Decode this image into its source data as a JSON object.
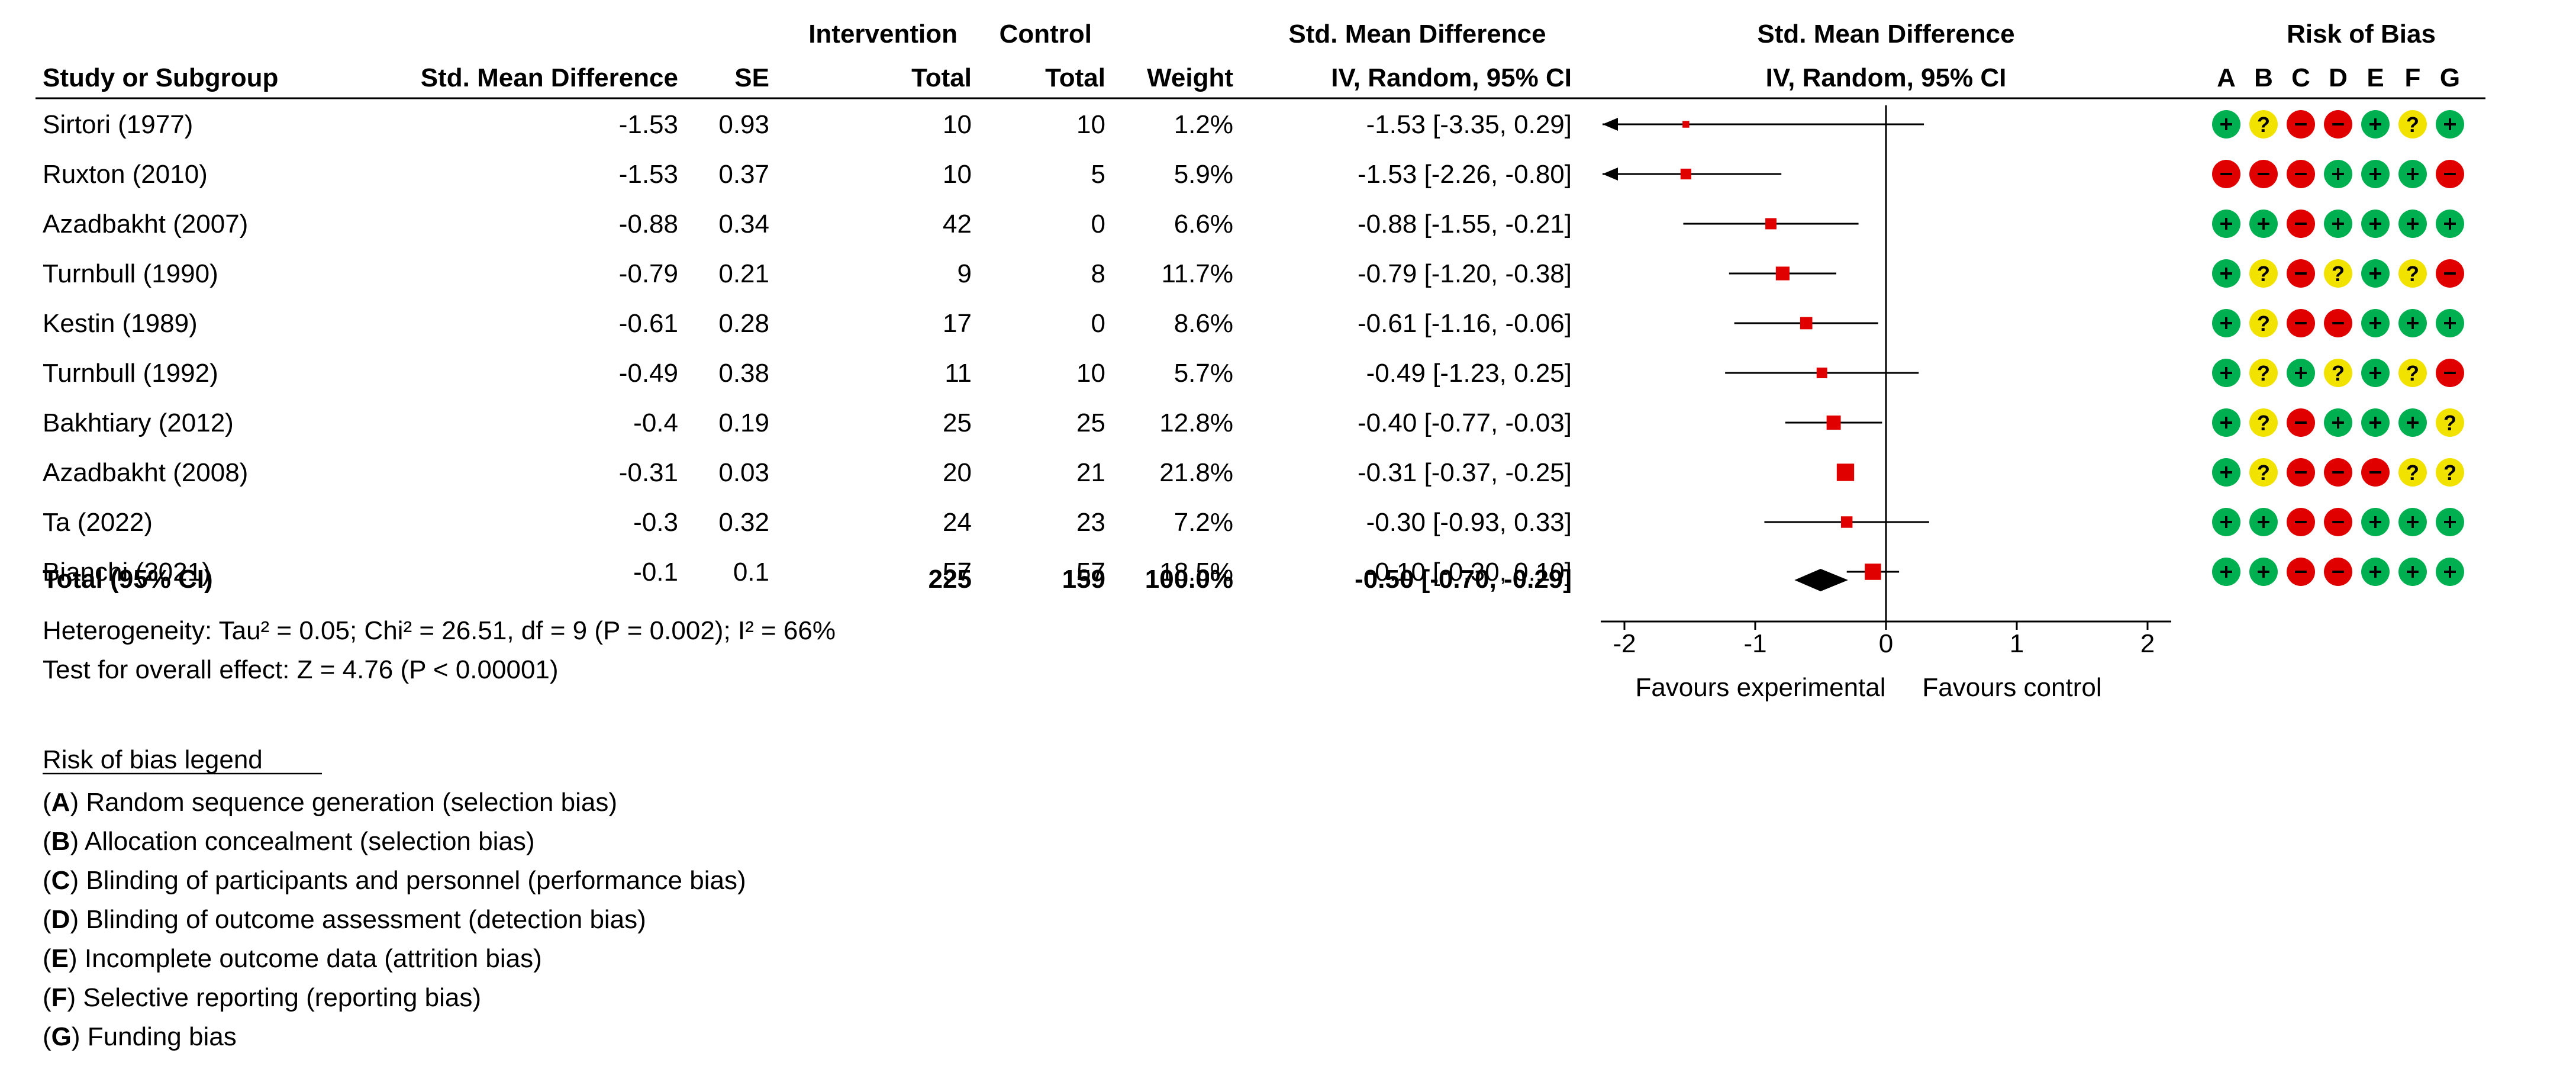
{
  "chart_data": {
    "type": "forest",
    "headers": {
      "group_intervention": "Intervention",
      "group_control": "Control",
      "group_smd": "Std. Mean Difference",
      "plot_title": "Std. Mean Difference",
      "rob_title": "Risk of Bias",
      "study": "Study or Subgroup",
      "smd": "Std. Mean Difference",
      "se": "SE",
      "int_total": "Total",
      "ctl_total": "Total",
      "weight": "Weight",
      "ci_method": "IV, Random, 95% CI",
      "plot_method": "IV, Random, 95% CI"
    },
    "rob_letters": [
      "A",
      "B",
      "C",
      "D",
      "E",
      "F",
      "G"
    ],
    "studies": [
      {
        "name": "Sirtori (1977)",
        "smd": "-1.53",
        "se": "0.93",
        "int_total": "10",
        "ctl_total": "10",
        "weight": "1.2%",
        "ci_text": "-1.53 [-3.35, 0.29]",
        "est": -1.53,
        "lo": -3.35,
        "hi": 0.29,
        "w": 1.2,
        "rob": [
          "+",
          "?",
          "-",
          "-",
          "+",
          "?",
          "+"
        ]
      },
      {
        "name": "Ruxton (2010)",
        "smd": "-1.53",
        "se": "0.37",
        "int_total": "10",
        "ctl_total": "5",
        "weight": "5.9%",
        "ci_text": "-1.53 [-2.26, -0.80]",
        "est": -1.53,
        "lo": -2.26,
        "hi": -0.8,
        "w": 5.9,
        "rob": [
          "-",
          "-",
          "-",
          "+",
          "+",
          "+",
          "-"
        ]
      },
      {
        "name": "Azadbakht (2007)",
        "smd": "-0.88",
        "se": "0.34",
        "int_total": "42",
        "ctl_total": "0",
        "weight": "6.6%",
        "ci_text": "-0.88 [-1.55, -0.21]",
        "est": -0.88,
        "lo": -1.55,
        "hi": -0.21,
        "w": 6.6,
        "rob": [
          "+",
          "+",
          "-",
          "+",
          "+",
          "+",
          "+"
        ]
      },
      {
        "name": "Turnbull (1990)",
        "smd": "-0.79",
        "se": "0.21",
        "int_total": "9",
        "ctl_total": "8",
        "weight": "11.7%",
        "ci_text": "-0.79 [-1.20, -0.38]",
        "est": -0.79,
        "lo": -1.2,
        "hi": -0.38,
        "w": 11.7,
        "rob": [
          "+",
          "?",
          "-",
          "?",
          "+",
          "?",
          "-"
        ]
      },
      {
        "name": "Kestin (1989)",
        "smd": "-0.61",
        "se": "0.28",
        "int_total": "17",
        "ctl_total": "0",
        "weight": "8.6%",
        "ci_text": "-0.61 [-1.16, -0.06]",
        "est": -0.61,
        "lo": -1.16,
        "hi": -0.06,
        "w": 8.6,
        "rob": [
          "+",
          "?",
          "-",
          "-",
          "+",
          "+",
          "+"
        ]
      },
      {
        "name": "Turnbull (1992)",
        "smd": "-0.49",
        "se": "0.38",
        "int_total": "11",
        "ctl_total": "10",
        "weight": "5.7%",
        "ci_text": "-0.49 [-1.23, 0.25]",
        "est": -0.49,
        "lo": -1.23,
        "hi": 0.25,
        "w": 5.7,
        "rob": [
          "+",
          "?",
          "+",
          "?",
          "+",
          "?",
          "-"
        ]
      },
      {
        "name": "Bakhtiary (2012)",
        "smd": "-0.4",
        "se": "0.19",
        "int_total": "25",
        "ctl_total": "25",
        "weight": "12.8%",
        "ci_text": "-0.40 [-0.77, -0.03]",
        "est": -0.4,
        "lo": -0.77,
        "hi": -0.03,
        "w": 12.8,
        "rob": [
          "+",
          "?",
          "-",
          "+",
          "+",
          "+",
          "?"
        ]
      },
      {
        "name": "Azadbakht (2008)",
        "smd": "-0.31",
        "se": "0.03",
        "int_total": "20",
        "ctl_total": "21",
        "weight": "21.8%",
        "ci_text": "-0.31 [-0.37, -0.25]",
        "est": -0.31,
        "lo": -0.37,
        "hi": -0.25,
        "w": 21.8,
        "rob": [
          "+",
          "?",
          "-",
          "-",
          "-",
          "?",
          "?"
        ]
      },
      {
        "name": "Ta (2022)",
        "smd": "-0.3",
        "se": "0.32",
        "int_total": "24",
        "ctl_total": "23",
        "weight": "7.2%",
        "ci_text": "-0.30 [-0.93, 0.33]",
        "est": -0.3,
        "lo": -0.93,
        "hi": 0.33,
        "w": 7.2,
        "rob": [
          "+",
          "+",
          "-",
          "-",
          "+",
          "+",
          "+"
        ]
      },
      {
        "name": "Bianchi (2021)",
        "smd": "-0.1",
        "se": "0.1",
        "int_total": "57",
        "ctl_total": "57",
        "weight": "18.5%",
        "ci_text": "-0.10 [-0.30, 0.10]",
        "est": -0.1,
        "lo": -0.3,
        "hi": 0.1,
        "w": 18.5,
        "rob": [
          "+",
          "+",
          "-",
          "-",
          "+",
          "+",
          "+"
        ]
      }
    ],
    "total": {
      "label": "Total (95% CI)",
      "int_total": "225",
      "ctl_total": "159",
      "weight": "100.0%",
      "ci_text": "-0.50 [-0.70, -0.29]",
      "est": -0.5,
      "lo": -0.7,
      "hi": -0.29
    },
    "heterogeneity": "Heterogeneity: Tau² = 0.05; Chi² = 26.51, df = 9 (P = 0.002); I² = 66%",
    "overall_effect": "Test for overall effect: Z = 4.76 (P < 0.00001)",
    "x_axis": {
      "min": -2,
      "max": 2,
      "ticks": [
        -2,
        -1,
        0,
        1,
        2
      ],
      "tick_labels": [
        "-2",
        "-1",
        "0",
        "1",
        "2"
      ]
    },
    "favours_left": "Favours experimental",
    "favours_right": "Favours control",
    "legend_title": "Risk of bias legend",
    "legend": [
      {
        "letter": "A",
        "text": "Random sequence generation (selection bias)"
      },
      {
        "letter": "B",
        "text": "Allocation concealment (selection bias)"
      },
      {
        "letter": "C",
        "text": "Blinding of participants and personnel (performance bias)"
      },
      {
        "letter": "D",
        "text": "Blinding of outcome assessment (detection bias)"
      },
      {
        "letter": "E",
        "text": "Incomplete outcome data (attrition bias)"
      },
      {
        "letter": "F",
        "text": "Selective reporting (reporting bias)"
      },
      {
        "letter": "G",
        "text": "Funding bias"
      }
    ],
    "colors": {
      "low": "#00b050",
      "unclear": "#f2e200",
      "high": "#e00000",
      "point": "#e00000",
      "line": "#000000"
    }
  }
}
